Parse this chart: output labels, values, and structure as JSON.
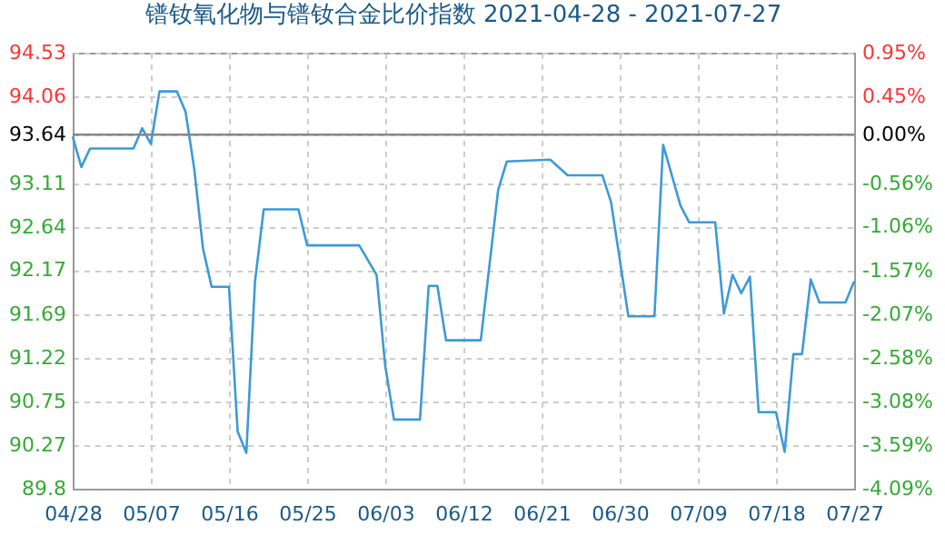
{
  "chart_data": {
    "type": "line",
    "title": "镨钕氧化物与镨钕合金比价指数 2021-04-28 - 2021-07-27",
    "x": [
      "2021-04-28",
      "2021-04-29",
      "2021-04-30",
      "2021-05-05",
      "2021-05-06",
      "2021-05-07",
      "2021-05-08",
      "2021-05-10",
      "2021-05-11",
      "2021-05-12",
      "2021-05-13",
      "2021-05-14",
      "2021-05-16",
      "2021-05-17",
      "2021-05-18",
      "2021-05-19",
      "2021-05-20",
      "2021-05-24",
      "2021-05-25",
      "2021-05-31",
      "2021-06-02",
      "2021-06-03",
      "2021-06-04",
      "2021-06-07",
      "2021-06-08",
      "2021-06-09",
      "2021-06-10",
      "2021-06-14",
      "2021-06-16",
      "2021-06-17",
      "2021-06-22",
      "2021-06-24",
      "2021-06-28",
      "2021-06-29",
      "2021-07-01",
      "2021-07-04",
      "2021-07-05",
      "2021-07-07",
      "2021-07-08",
      "2021-07-11",
      "2021-07-12",
      "2021-07-13",
      "2021-07-14",
      "2021-07-15",
      "2021-07-16",
      "2021-07-18",
      "2021-07-19",
      "2021-07-20",
      "2021-07-21",
      "2021-07-22",
      "2021-07-23",
      "2021-07-26",
      "2021-07-27"
    ],
    "series": [
      {
        "color": "#3d9ad6",
        "values": [
          93.62,
          93.29,
          93.49,
          93.49,
          93.71,
          93.54,
          94.11,
          94.11,
          93.89,
          93.27,
          92.41,
          91.99,
          91.99,
          90.42,
          90.19,
          92.05,
          92.83,
          92.83,
          92.44,
          92.44,
          92.12,
          91.13,
          90.55,
          90.55,
          92.0,
          92.0,
          91.41,
          91.41,
          93.04,
          93.35,
          93.37,
          93.2,
          93.2,
          92.91,
          91.67,
          91.67,
          93.53,
          92.87,
          92.69,
          92.69,
          91.7,
          92.12,
          91.92,
          92.1,
          90.63,
          90.63,
          90.2,
          91.26,
          91.26,
          92.07,
          91.82,
          91.82,
          92.05
        ]
      }
    ],
    "xlim": [
      "2021-04-28",
      "2021-07-27"
    ],
    "xticks": [
      {
        "value": "2021-04-28",
        "label": "04/28"
      },
      {
        "value": "2021-05-07",
        "label": "05/07"
      },
      {
        "value": "2021-05-16",
        "label": "05/16"
      },
      {
        "value": "2021-05-25",
        "label": "05/25"
      },
      {
        "value": "2021-06-03",
        "label": "06/03"
      },
      {
        "value": "2021-06-12",
        "label": "06/12"
      },
      {
        "value": "2021-06-21",
        "label": "06/21"
      },
      {
        "value": "2021-06-30",
        "label": "06/30"
      },
      {
        "value": "2021-07-09",
        "label": "07/09"
      },
      {
        "value": "2021-07-18",
        "label": "07/18"
      },
      {
        "value": "2021-07-27",
        "label": "07/27"
      }
    ],
    "ylim": [
      89.8,
      94.53
    ],
    "yticks": [
      89.8,
      90.27,
      90.75,
      91.22,
      91.69,
      92.17,
      92.64,
      93.11,
      93.64,
      94.06,
      94.53
    ],
    "y2lim": [
      -4.09,
      0.95
    ],
    "y2ticks": [
      {
        "value": -4.09,
        "label": "-4.09%"
      },
      {
        "value": -3.59,
        "label": "-3.59%"
      },
      {
        "value": -3.08,
        "label": "-3.08%"
      },
      {
        "value": -2.58,
        "label": "-2.58%"
      },
      {
        "value": -2.07,
        "label": "-2.07%"
      },
      {
        "value": -1.57,
        "label": "-1.57%"
      },
      {
        "value": -1.06,
        "label": "-1.06%"
      },
      {
        "value": -0.56,
        "label": "-0.56%"
      },
      {
        "value": 0,
        "label": "0.00%"
      },
      {
        "value": 0.45,
        "label": "0.45%"
      },
      {
        "value": 0.95,
        "label": "0.95%"
      }
    ],
    "ref_lines": [
      {
        "axis": "y",
        "value": 93.64,
        "color": "#888888"
      }
    ],
    "grid": true,
    "marker": "none",
    "line_style": "solid"
  }
}
